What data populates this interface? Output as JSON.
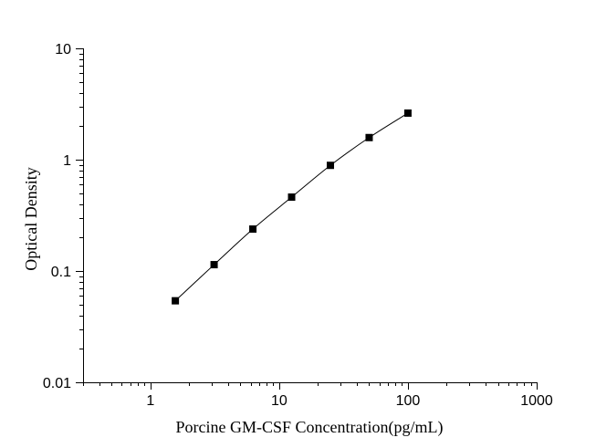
{
  "chart_data": {
    "type": "scatter",
    "title": "",
    "xlabel": "Porcine GM-CSF Concentration(pg/mL)",
    "ylabel": "Optical Density",
    "xscale": "log",
    "yscale": "log",
    "xlim": [
      0.3,
      1000
    ],
    "ylim": [
      0.01,
      10
    ],
    "grid": false,
    "legend": "none",
    "x_tick_labels": [
      "1",
      "10",
      "100",
      "1000"
    ],
    "y_tick_labels": [
      "0.01",
      "0.1",
      "1",
      "10"
    ],
    "series": [
      {
        "x": [
          1.5625,
          3.125,
          6.25,
          12.5,
          25,
          50,
          100
        ],
        "y": [
          0.054,
          0.114,
          0.238,
          0.461,
          0.889,
          1.58,
          2.62
        ],
        "marker": "square",
        "fit_line": true,
        "color": "#000000"
      }
    ]
  }
}
